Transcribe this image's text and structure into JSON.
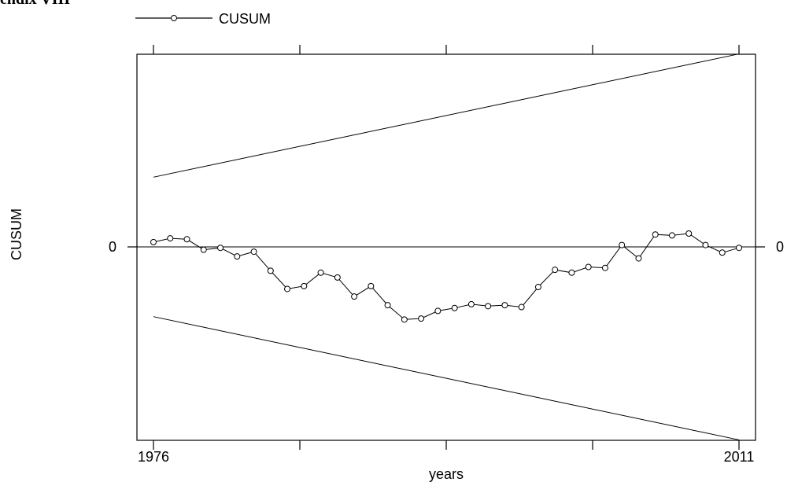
{
  "header": {
    "title": "endix VIII"
  },
  "chart_data": {
    "type": "line",
    "title": "",
    "xlabel": "years",
    "ylabel": "CUSUM",
    "x_tick_labels": [
      "1976",
      "2011"
    ],
    "y_tick_label": "0",
    "legend": {
      "position": "top-left",
      "entries": [
        "CUSUM"
      ]
    },
    "grid": false,
    "xlim": [
      1976,
      2011
    ],
    "ylim": [
      -20,
      20
    ],
    "x": [
      1976,
      1977,
      1978,
      1979,
      1980,
      1981,
      1982,
      1983,
      1984,
      1985,
      1986,
      1987,
      1988,
      1989,
      1990,
      1991,
      1992,
      1993,
      1994,
      1995,
      1996,
      1997,
      1998,
      1999,
      2000,
      2001,
      2002,
      2003,
      2004,
      2005,
      2006,
      2007,
      2008,
      2009,
      2010,
      2011
    ],
    "series": [
      {
        "name": "CUSUM",
        "values": [
          0.5,
          0.9,
          0.8,
          -0.3,
          -0.1,
          -1.0,
          -0.5,
          -2.5,
          -4.4,
          -4.1,
          -2.7,
          -3.2,
          -5.2,
          -4.1,
          -6.1,
          -7.6,
          -7.5,
          -6.7,
          -6.4,
          -6.0,
          -6.2,
          -6.1,
          -6.3,
          -4.2,
          -2.4,
          -2.7,
          -2.1,
          -2.2,
          0.2,
          -1.2,
          1.3,
          1.2,
          1.4,
          0.2,
          -0.6,
          -0.1
        ]
      },
      {
        "name": "",
        "style": "line-only",
        "values_endpoints": [
          7.3,
          20.2
        ]
      },
      {
        "name": "",
        "style": "line-only",
        "values_endpoints": [
          -7.3,
          -20.2
        ]
      }
    ],
    "reference_line_y": 0
  }
}
